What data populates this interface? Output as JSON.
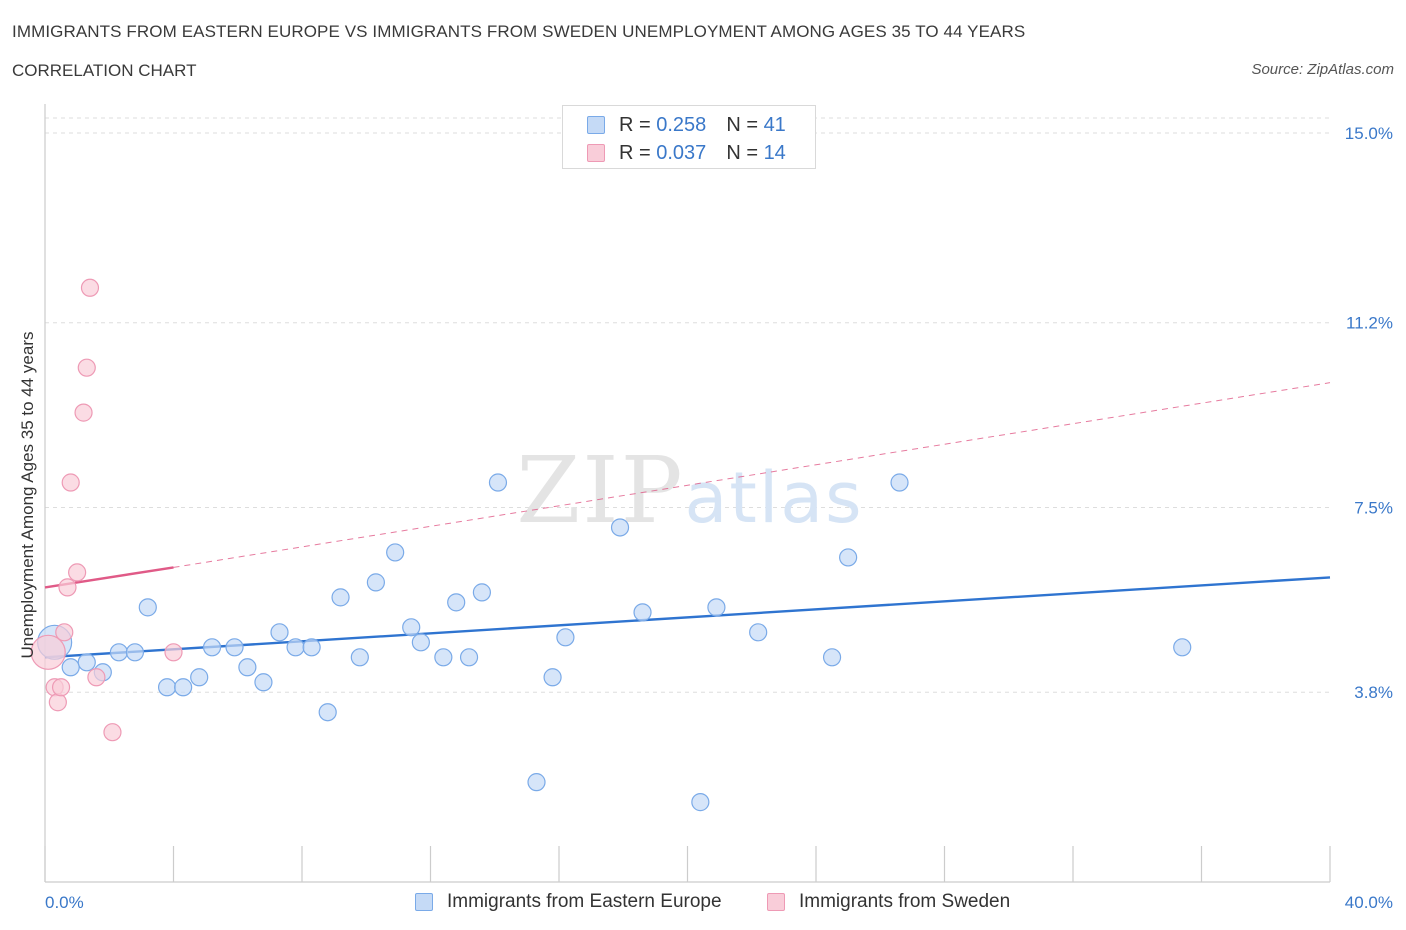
{
  "chart_data": {
    "type": "scatter",
    "title": "IMMIGRANTS FROM EASTERN EUROPE VS IMMIGRANTS FROM SWEDEN UNEMPLOYMENT AMONG AGES 35 TO 44 YEARS",
    "subtitle": "CORRELATION CHART",
    "source": "Source: ZipAtlas.com",
    "ylabel": "Unemployment Among Ages 35 to 44 years",
    "xlim": [
      0,
      40
    ],
    "ylim": [
      0,
      15.3
    ],
    "x_tick_labels": [
      "0.0%",
      "40.0%"
    ],
    "y_ticks": [
      3.8,
      7.5,
      11.2,
      15.0
    ],
    "y_tick_labels": [
      "3.8%",
      "7.5%",
      "11.2%",
      "15.0%"
    ],
    "watermark": "ZIPatlas",
    "legend": {
      "rows": [
        {
          "r_label": "R =",
          "r_value": "0.258",
          "n_label": "N =",
          "n_value": "41"
        },
        {
          "r_label": "R =",
          "r_value": "0.037",
          "n_label": "N =",
          "n_value": "14"
        }
      ]
    },
    "series": [
      {
        "name": "Immigrants from Eastern Europe",
        "color": "#7aaae8",
        "fill": "#c5daf6",
        "trend_color": "#2f74d0",
        "trend": {
          "x0": 0,
          "y0": 4.5,
          "x1": 40,
          "y1": 6.1
        },
        "points": [
          {
            "x": 0.3,
            "y": 4.8,
            "big": true
          },
          {
            "x": 0.8,
            "y": 4.3
          },
          {
            "x": 1.3,
            "y": 4.4
          },
          {
            "x": 1.8,
            "y": 4.2
          },
          {
            "x": 2.3,
            "y": 4.6
          },
          {
            "x": 2.8,
            "y": 4.6
          },
          {
            "x": 3.2,
            "y": 5.5
          },
          {
            "x": 3.8,
            "y": 3.9
          },
          {
            "x": 4.3,
            "y": 3.9
          },
          {
            "x": 4.8,
            "y": 4.1
          },
          {
            "x": 5.2,
            "y": 4.7
          },
          {
            "x": 5.9,
            "y": 4.7
          },
          {
            "x": 6.3,
            "y": 4.3
          },
          {
            "x": 6.8,
            "y": 4.0
          },
          {
            "x": 7.3,
            "y": 5.0
          },
          {
            "x": 7.8,
            "y": 4.7
          },
          {
            "x": 8.3,
            "y": 4.7
          },
          {
            "x": 8.8,
            "y": 3.4
          },
          {
            "x": 9.2,
            "y": 5.7
          },
          {
            "x": 9.8,
            "y": 4.5
          },
          {
            "x": 10.3,
            "y": 6.0
          },
          {
            "x": 10.9,
            "y": 6.6
          },
          {
            "x": 11.4,
            "y": 5.1
          },
          {
            "x": 11.7,
            "y": 4.8
          },
          {
            "x": 12.4,
            "y": 4.5
          },
          {
            "x": 12.8,
            "y": 5.6
          },
          {
            "x": 13.2,
            "y": 4.5
          },
          {
            "x": 13.6,
            "y": 5.8
          },
          {
            "x": 14.1,
            "y": 8.0
          },
          {
            "x": 15.3,
            "y": 2.0
          },
          {
            "x": 15.8,
            "y": 4.1
          },
          {
            "x": 16.2,
            "y": 4.9
          },
          {
            "x": 17.9,
            "y": 7.1
          },
          {
            "x": 18.6,
            "y": 5.4
          },
          {
            "x": 20.4,
            "y": 1.6
          },
          {
            "x": 20.9,
            "y": 5.5
          },
          {
            "x": 22.2,
            "y": 5.0
          },
          {
            "x": 24.5,
            "y": 4.5
          },
          {
            "x": 25.0,
            "y": 6.5
          },
          {
            "x": 26.6,
            "y": 8.0
          },
          {
            "x": 35.4,
            "y": 4.7
          }
        ]
      },
      {
        "name": "Immigrants from Sweden",
        "color": "#ee9ab5",
        "fill": "#f9cdd9",
        "trend_color": "#e05a87",
        "trend": {
          "x0": 0,
          "y0": 5.9,
          "x1": 4.0,
          "y1": 6.3
        },
        "trend_ext": {
          "x0": 4.0,
          "y0": 6.3,
          "x1": 40,
          "y1": 10.0
        },
        "points": [
          {
            "x": 0.1,
            "y": 4.6,
            "big": true
          },
          {
            "x": 0.3,
            "y": 3.9
          },
          {
            "x": 0.4,
            "y": 3.6
          },
          {
            "x": 0.5,
            "y": 3.9
          },
          {
            "x": 0.6,
            "y": 5.0
          },
          {
            "x": 0.7,
            "y": 5.9
          },
          {
            "x": 0.8,
            "y": 8.0
          },
          {
            "x": 1.0,
            "y": 6.2
          },
          {
            "x": 1.2,
            "y": 9.4
          },
          {
            "x": 1.3,
            "y": 10.3
          },
          {
            "x": 1.4,
            "y": 11.9
          },
          {
            "x": 1.6,
            "y": 4.1
          },
          {
            "x": 2.1,
            "y": 3.0
          },
          {
            "x": 4.0,
            "y": 4.6
          }
        ]
      }
    ]
  }
}
